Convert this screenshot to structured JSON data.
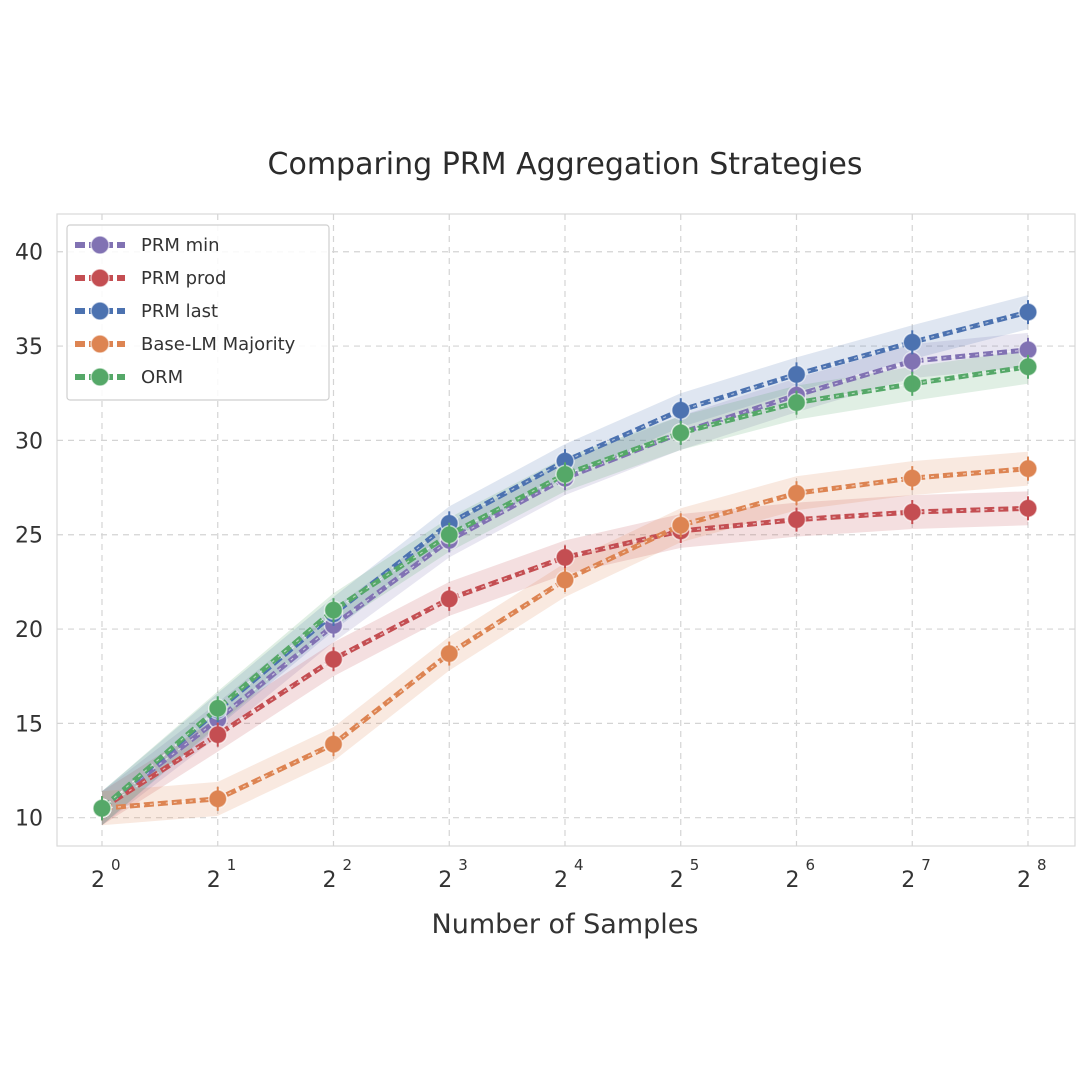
{
  "chart_data": {
    "type": "line",
    "title": "Comparing PRM Aggregation Strategies",
    "xlabel": "Number of Samples",
    "ylabel": "",
    "x_base": "2",
    "x_exponents": [
      "0",
      "1",
      "2",
      "3",
      "4",
      "5",
      "6",
      "7",
      "8"
    ],
    "x": [
      1,
      2,
      4,
      8,
      16,
      32,
      64,
      128,
      256
    ],
    "x_scale": "log2",
    "ylim": [
      8.5,
      42
    ],
    "yticks": [
      10,
      15,
      20,
      25,
      30,
      35,
      40
    ],
    "grid": true,
    "legend_position": "top-left",
    "series": [
      {
        "name": "PRM min",
        "color": "#8172b3",
        "values": [
          10.5,
          15.2,
          20.2,
          24.7,
          28.0,
          30.4,
          32.4,
          34.2,
          34.8
        ],
        "band": 0.9
      },
      {
        "name": "PRM prod",
        "color": "#c44e52",
        "values": [
          10.5,
          14.4,
          18.4,
          21.6,
          23.8,
          25.2,
          25.8,
          26.2,
          26.4
        ],
        "band": 0.9
      },
      {
        "name": "PRM last",
        "color": "#4c72b0",
        "values": [
          10.5,
          15.7,
          20.8,
          25.6,
          28.9,
          31.6,
          33.5,
          35.2,
          36.8
        ],
        "band": 0.9
      },
      {
        "name": "Base-LM Majority",
        "color": "#dd8452",
        "values": [
          10.5,
          11.0,
          13.9,
          18.7,
          22.6,
          25.5,
          27.2,
          28.0,
          28.5
        ],
        "band": 0.9
      },
      {
        "name": "ORM",
        "color": "#55a868",
        "values": [
          10.5,
          15.8,
          21.0,
          25.0,
          28.2,
          30.4,
          32.0,
          33.0,
          33.9
        ],
        "band": 0.9
      }
    ]
  }
}
